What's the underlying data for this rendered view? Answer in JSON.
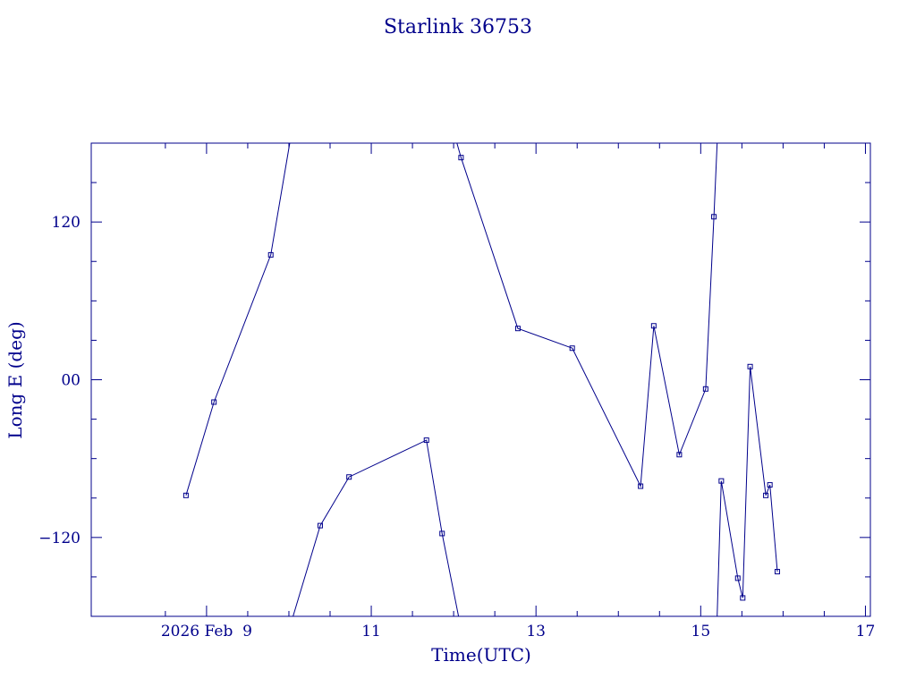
{
  "chart_data": {
    "type": "line",
    "title": "Starlink 36753",
    "xlabel": "Time(UTC)",
    "ylabel": "Long E (deg)",
    "x_tick_labels": [
      {
        "x": 9.0,
        "label": "2026 Feb  9"
      },
      {
        "x": 11.0,
        "label": "11"
      },
      {
        "x": 13.0,
        "label": "13"
      },
      {
        "x": 15.0,
        "label": "15"
      },
      {
        "x": 17.0,
        "label": "17"
      }
    ],
    "y_tick_labels": [
      {
        "y": 120,
        "label": "120"
      },
      {
        "y": 0,
        "label": "00"
      },
      {
        "y": -120,
        "label": "−120"
      }
    ],
    "x_minor_ticks": [
      8.5,
      9.5,
      10.0,
      10.5,
      11.5,
      12.0,
      12.5,
      13.5,
      14.0,
      14.5,
      15.5,
      16.0,
      16.5
    ],
    "y_minor_ticks": [
      150,
      90,
      60,
      30,
      -30,
      -60,
      -90,
      -150
    ],
    "xlim": [
      7.6,
      17.06
    ],
    "ylim": [
      -180,
      180
    ],
    "grid": false,
    "color": "#00008b",
    "segments": [
      [
        {
          "x": 8.75,
          "y": -88
        },
        {
          "x": 9.09,
          "y": -17
        },
        {
          "x": 9.78,
          "y": 95
        },
        {
          "x": 10.01,
          "y": 180
        }
      ],
      [
        {
          "x": 10.05,
          "y": -180
        },
        {
          "x": 10.38,
          "y": -111
        },
        {
          "x": 10.73,
          "y": -74
        },
        {
          "x": 11.67,
          "y": -46
        },
        {
          "x": 11.86,
          "y": -117
        },
        {
          "x": 12.06,
          "y": -180
        }
      ],
      [
        {
          "x": 12.04,
          "y": 180
        },
        {
          "x": 12.09,
          "y": 169
        },
        {
          "x": 12.78,
          "y": 39
        },
        {
          "x": 13.44,
          "y": 24
        },
        {
          "x": 14.27,
          "y": -81
        },
        {
          "x": 14.43,
          "y": 41
        },
        {
          "x": 14.74,
          "y": -57
        },
        {
          "x": 15.06,
          "y": -7
        },
        {
          "x": 15.16,
          "y": 124
        },
        {
          "x": 15.2,
          "y": 180
        }
      ],
      [
        {
          "x": 15.2,
          "y": -180
        },
        {
          "x": 15.25,
          "y": -77
        },
        {
          "x": 15.45,
          "y": -151
        },
        {
          "x": 15.51,
          "y": -166
        },
        {
          "x": 15.6,
          "y": 10
        },
        {
          "x": 15.79,
          "y": -88
        },
        {
          "x": 15.84,
          "y": -80
        },
        {
          "x": 15.93,
          "y": -146
        }
      ]
    ]
  }
}
